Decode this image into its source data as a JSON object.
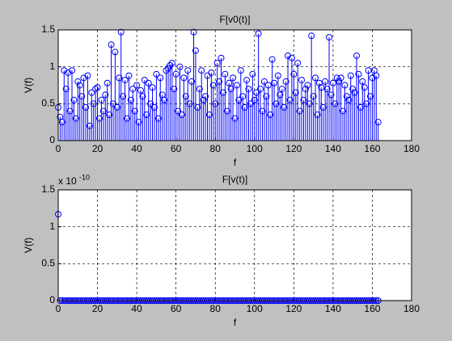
{
  "chart_data": [
    {
      "type": "stem",
      "title": "F[v0(t)]",
      "x_label": "f",
      "y_label": "V(f)",
      "color": "#0000ff",
      "grid": true,
      "xlim": [
        0,
        180
      ],
      "xticks": [
        0,
        20,
        40,
        60,
        80,
        100,
        120,
        140,
        160,
        180
      ],
      "ylim": [
        0,
        1.5
      ],
      "yticks": [
        0,
        0.5,
        1,
        1.5
      ],
      "x": [
        0,
        1,
        2,
        3,
        4,
        5,
        6,
        7,
        8,
        9,
        10,
        11,
        12,
        13,
        14,
        15,
        16,
        17,
        18,
        19,
        20,
        21,
        22,
        23,
        24,
        25,
        26,
        27,
        28,
        29,
        30,
        31,
        32,
        33,
        34,
        35,
        36,
        37,
        38,
        39,
        40,
        41,
        42,
        43,
        44,
        45,
        46,
        47,
        48,
        49,
        50,
        51,
        52,
        53,
        54,
        55,
        56,
        57,
        58,
        59,
        60,
        61,
        62,
        63,
        64,
        65,
        66,
        67,
        68,
        69,
        70,
        71,
        72,
        73,
        74,
        75,
        76,
        77,
        78,
        79,
        80,
        81,
        82,
        83,
        84,
        85,
        86,
        87,
        88,
        89,
        90,
        91,
        92,
        93,
        94,
        95,
        96,
        97,
        98,
        99,
        100,
        101,
        102,
        103,
        104,
        105,
        106,
        107,
        108,
        109,
        110,
        111,
        112,
        113,
        114,
        115,
        116,
        117,
        118,
        119,
        120,
        121,
        122,
        123,
        124,
        125,
        126,
        127,
        128,
        129,
        130,
        131,
        132,
        133,
        134,
        135,
        136,
        137,
        138,
        139,
        140,
        141,
        142,
        143,
        144,
        145,
        146,
        147,
        148,
        149,
        150,
        151,
        152,
        153,
        154,
        155,
        156,
        157,
        158,
        159,
        160,
        161,
        162,
        163
      ],
      "values": [
        0.45,
        0.32,
        0.25,
        0.95,
        0.7,
        0.92,
        0.4,
        0.95,
        0.55,
        0.3,
        0.8,
        0.75,
        0.6,
        0.85,
        0.45,
        0.88,
        0.2,
        0.65,
        0.5,
        0.7,
        0.72,
        0.3,
        0.55,
        0.4,
        0.62,
        0.78,
        0.35,
        1.3,
        0.5,
        1.2,
        0.45,
        0.85,
        1.47,
        0.6,
        0.82,
        0.3,
        0.88,
        0.55,
        0.7,
        0.4,
        0.75,
        0.25,
        0.68,
        0.6,
        0.82,
        0.35,
        0.78,
        0.5,
        0.72,
        0.45,
        0.9,
        0.3,
        0.85,
        0.62,
        0.55,
        0.95,
        0.98,
        1.02,
        1.05,
        0.7,
        0.9,
        0.4,
        1.0,
        0.35,
        0.85,
        0.6,
        0.95,
        0.5,
        0.8,
        1.47,
        1.22,
        0.45,
        0.7,
        0.95,
        0.55,
        0.6,
        0.88,
        0.35,
        0.92,
        0.75,
        0.5,
        1.05,
        0.8,
        1.12,
        0.65,
        0.9,
        0.4,
        0.78,
        0.7,
        0.85,
        0.3,
        0.75,
        0.55,
        0.95,
        0.6,
        0.45,
        0.82,
        0.7,
        0.5,
        0.9,
        0.55,
        0.65,
        1.45,
        0.7,
        0.4,
        0.8,
        0.6,
        0.75,
        0.35,
        1.1,
        0.78,
        0.5,
        0.88,
        0.62,
        0.7,
        0.45,
        0.8,
        1.15,
        0.55,
        1.12,
        0.9,
        0.65,
        1.05,
        0.4,
        0.82,
        0.55,
        0.7,
        0.75,
        0.5,
        1.42,
        0.6,
        0.85,
        0.35,
        0.78,
        0.72,
        0.45,
        0.8,
        0.7,
        1.4,
        0.62,
        0.78,
        0.5,
        0.85,
        0.8,
        0.85,
        0.4,
        0.75,
        0.6,
        0.55,
        0.88,
        0.7,
        0.65,
        1.15,
        0.9,
        0.45,
        0.8,
        0.72,
        0.5,
        0.95,
        0.6,
        0.85,
        0.95,
        0.88,
        0.25
      ]
    },
    {
      "type": "stem",
      "title": "F[v(t)]",
      "x_label": "f",
      "y_label": "V(f)",
      "color": "#0000ff",
      "grid": true,
      "y_scale_label": "x 10",
      "y_scale_exponent": "-10",
      "xlim": [
        0,
        180
      ],
      "xticks": [
        0,
        20,
        40,
        60,
        80,
        100,
        120,
        140,
        160,
        180
      ],
      "ylim": [
        0,
        1.5
      ],
      "yticks": [
        0,
        0.5,
        1,
        1.5
      ],
      "x": [
        0,
        1,
        2,
        3,
        4,
        5,
        6,
        7,
        8,
        9,
        10,
        11,
        12,
        13,
        14,
        15,
        16,
        17,
        18,
        19,
        20,
        21,
        22,
        23,
        24,
        25,
        26,
        27,
        28,
        29,
        30,
        31,
        32,
        33,
        34,
        35,
        36,
        37,
        38,
        39,
        40,
        41,
        42,
        43,
        44,
        45,
        46,
        47,
        48,
        49,
        50,
        51,
        52,
        53,
        54,
        55,
        56,
        57,
        58,
        59,
        60,
        61,
        62,
        63,
        64,
        65,
        66,
        67,
        68,
        69,
        70,
        71,
        72,
        73,
        74,
        75,
        76,
        77,
        78,
        79,
        80,
        81,
        82,
        83,
        84,
        85,
        86,
        87,
        88,
        89,
        90,
        91,
        92,
        93,
        94,
        95,
        96,
        97,
        98,
        99,
        100,
        101,
        102,
        103,
        104,
        105,
        106,
        107,
        108,
        109,
        110,
        111,
        112,
        113,
        114,
        115,
        116,
        117,
        118,
        119,
        120,
        121,
        122,
        123,
        124,
        125,
        126,
        127,
        128,
        129,
        130,
        131,
        132,
        133,
        134,
        135,
        136,
        137,
        138,
        139,
        140,
        141,
        142,
        143,
        144,
        145,
        146,
        147,
        148,
        149,
        150,
        151,
        152,
        153,
        154,
        155,
        156,
        157,
        158,
        159,
        160,
        161,
        162,
        163
      ],
      "values": [
        1.17,
        0,
        0,
        0,
        0,
        0,
        0,
        0,
        0,
        0,
        0,
        0,
        0,
        0,
        0,
        0,
        0,
        0,
        0,
        0,
        0,
        0,
        0,
        0,
        0,
        0,
        0,
        0,
        0,
        0,
        0,
        0,
        0,
        0,
        0,
        0,
        0,
        0,
        0,
        0,
        0,
        0,
        0,
        0,
        0,
        0,
        0,
        0,
        0,
        0,
        0,
        0,
        0,
        0,
        0,
        0,
        0,
        0,
        0,
        0,
        0,
        0,
        0,
        0,
        0,
        0,
        0,
        0,
        0,
        0,
        0,
        0,
        0,
        0,
        0,
        0,
        0,
        0,
        0,
        0,
        0,
        0,
        0,
        0,
        0,
        0,
        0,
        0,
        0,
        0,
        0,
        0,
        0,
        0,
        0,
        0,
        0,
        0,
        0,
        0,
        0,
        0,
        0,
        0,
        0,
        0,
        0,
        0,
        0,
        0,
        0,
        0,
        0,
        0,
        0,
        0,
        0,
        0,
        0,
        0,
        0,
        0,
        0,
        0,
        0,
        0,
        0,
        0,
        0,
        0,
        0,
        0,
        0,
        0,
        0,
        0,
        0,
        0,
        0,
        0,
        0,
        0,
        0,
        0,
        0,
        0,
        0,
        0,
        0,
        0,
        0,
        0,
        0,
        0,
        0,
        0,
        0,
        0,
        0,
        0,
        0,
        0,
        0,
        0
      ]
    }
  ]
}
